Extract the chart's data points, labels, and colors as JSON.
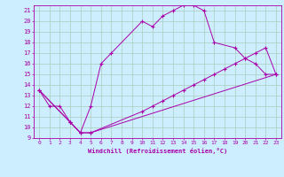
{
  "background_color": "#cceeff",
  "grid_color": "#aaccbb",
  "line_color": "#aa00aa",
  "xlabel": "Windchill (Refroidissement éolien,°C)",
  "xlim": [
    -0.5,
    23.5
  ],
  "ylim": [
    9,
    21.5
  ],
  "xticks": [
    0,
    1,
    2,
    3,
    4,
    5,
    6,
    7,
    8,
    9,
    10,
    11,
    12,
    13,
    14,
    15,
    16,
    17,
    18,
    19,
    20,
    21,
    22,
    23
  ],
  "yticks": [
    9,
    10,
    11,
    12,
    13,
    14,
    15,
    16,
    17,
    18,
    19,
    20,
    21
  ],
  "line1_x": [
    0,
    1,
    2,
    3,
    4,
    5,
    6,
    7,
    10,
    11,
    12,
    13,
    14,
    15,
    16,
    17,
    19,
    20,
    21,
    22,
    23
  ],
  "line1_y": [
    13.5,
    12.0,
    12.0,
    10.5,
    9.5,
    12.0,
    16.0,
    17.0,
    20.0,
    19.5,
    20.5,
    21.0,
    21.5,
    21.5,
    21.0,
    18.0,
    17.5,
    16.5,
    16.0,
    15.0,
    15.0
  ],
  "line2_x": [
    0,
    3,
    4,
    5,
    10,
    11,
    12,
    13,
    14,
    15,
    16,
    17,
    18,
    19,
    20,
    21,
    22,
    23
  ],
  "line2_y": [
    13.5,
    10.5,
    9.5,
    9.5,
    11.5,
    12.0,
    12.5,
    13.0,
    13.5,
    14.0,
    14.5,
    15.0,
    15.5,
    16.0,
    16.5,
    17.0,
    17.5,
    15.0
  ],
  "line3_x": [
    0,
    3,
    4,
    5,
    23
  ],
  "line3_y": [
    13.5,
    10.5,
    9.5,
    9.5,
    15.0
  ]
}
